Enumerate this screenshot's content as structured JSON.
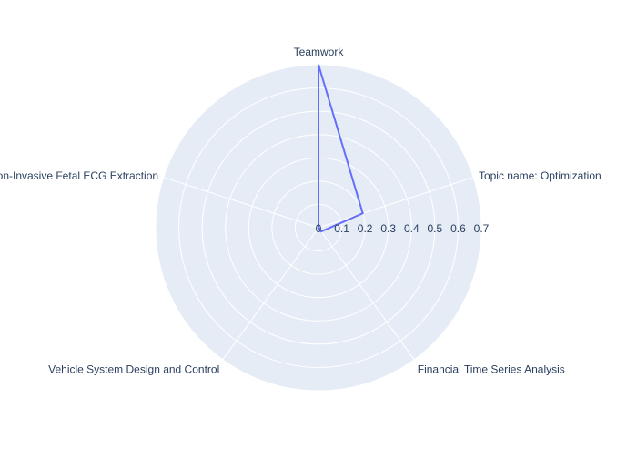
{
  "chart_data": {
    "type": "radar",
    "categories": [
      "Teamwork",
      "Topic name: Optimization",
      "Financial Time Series Analysis",
      "Vehicle System Design and Control",
      "Non-Invasive Fetal ECG Extraction"
    ],
    "series": [
      {
        "values": [
          0.7,
          0.2,
          0.02,
          0.0,
          0.0
        ],
        "color": "#636efa"
      }
    ],
    "radial_ticks": [
      0,
      0.1,
      0.2,
      0.3,
      0.4,
      0.5,
      0.6,
      0.7
    ],
    "rlim": [
      0,
      0.7
    ],
    "grid": true,
    "legend": "none",
    "colors": {
      "polar_background": "#e5ecf6",
      "grid": "#ffffff",
      "text": "#2a3f5f"
    }
  }
}
